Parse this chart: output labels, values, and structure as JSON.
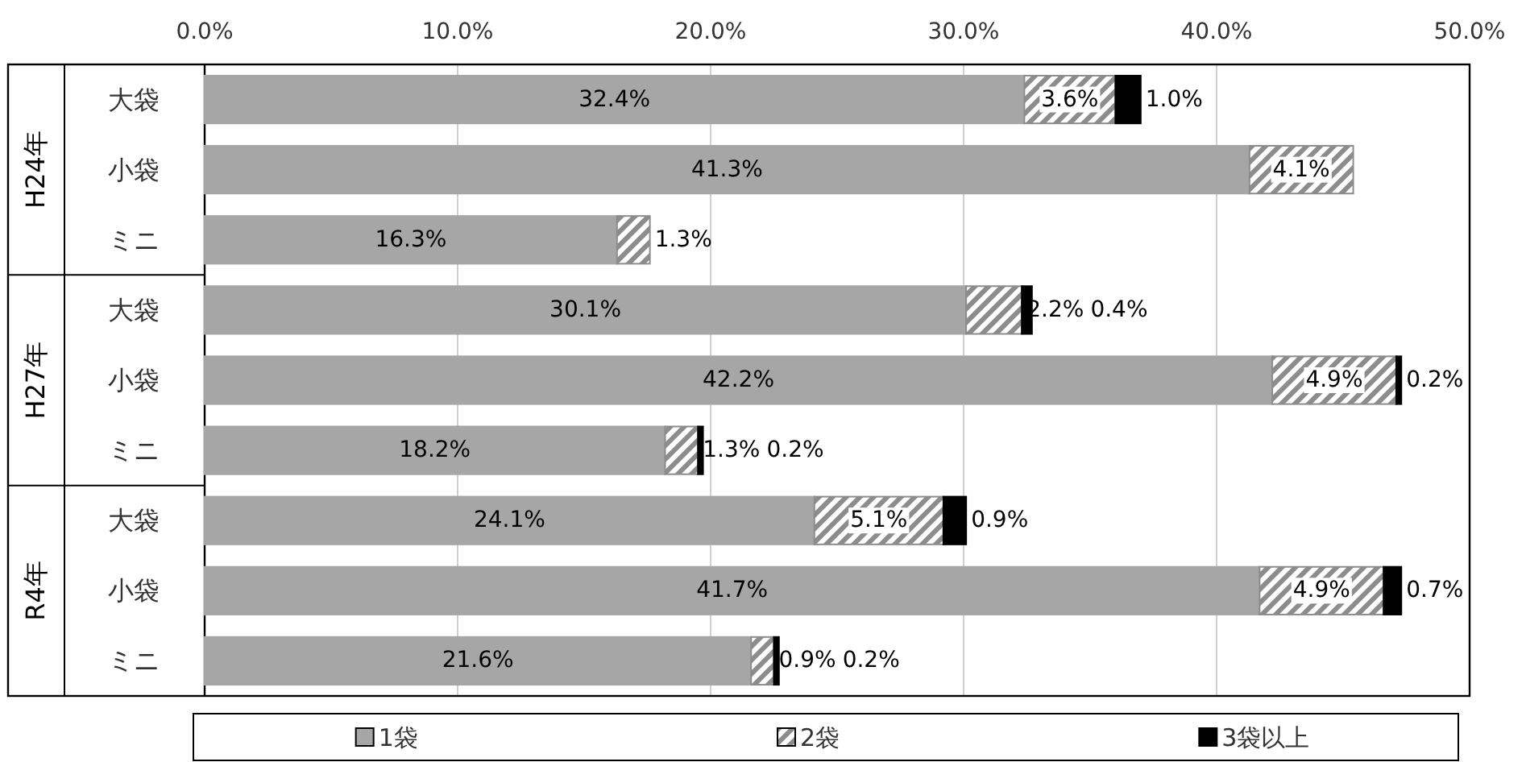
{
  "chart_data": {
    "type": "bar",
    "orientation": "horizontal",
    "stacked": true,
    "categories": [
      "大袋",
      "小袋",
      "ミニ",
      "大袋",
      "小袋",
      "ミニ",
      "大袋",
      "小袋",
      "ミニ"
    ],
    "annotations": [
      "H24年",
      "H27年",
      "R4年"
    ],
    "series": [
      {
        "name": "1袋",
        "color": "#a6a6a6",
        "values": [
          32.4,
          41.3,
          16.3,
          30.1,
          42.2,
          18.2,
          24.1,
          41.7,
          21.6
        ],
        "value_labels": [
          "32.4%",
          "41.3%",
          "16.3%",
          "30.1%",
          "42.2%",
          "18.2%",
          "24.1%",
          "41.7%",
          "21.6%"
        ]
      },
      {
        "name": "2袋",
        "color": "#8c8c8c",
        "values": [
          3.6,
          4.1,
          1.3,
          2.2,
          4.9,
          1.3,
          5.1,
          4.9,
          0.9
        ],
        "value_labels": [
          "3.6%",
          "4.1%",
          "1.3%",
          "2.2%",
          "4.9%",
          "1.3%",
          "5.1%",
          "4.9%",
          "0.9%"
        ]
      },
      {
        "name": "3袋以上",
        "color": "#000000",
        "values": [
          1.0,
          null,
          null,
          0.4,
          0.2,
          0.2,
          0.9,
          0.7,
          0.2
        ],
        "value_labels": [
          "1.0%",
          null,
          null,
          "0.4%",
          "0.2%",
          "0.2%",
          "0.9%",
          "0.7%",
          "0.2%"
        ]
      }
    ],
    "xlim": [
      0,
      50
    ],
    "xticks": [
      {
        "value": 0,
        "label": "0.0%"
      },
      {
        "value": 10,
        "label": "10.0%"
      },
      {
        "value": 20,
        "label": "20.0%"
      },
      {
        "value": 30,
        "label": "30.0%"
      },
      {
        "value": 40,
        "label": "40.0%"
      },
      {
        "value": 50,
        "label": "50.0%"
      }
    ],
    "grid": "x",
    "legend": "bottom"
  }
}
